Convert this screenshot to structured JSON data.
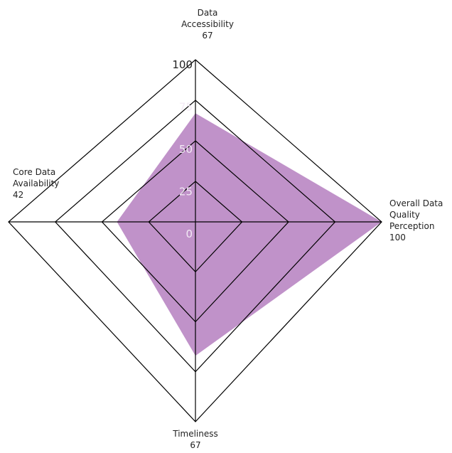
{
  "chart_data": {
    "type": "radar",
    "categories": [
      [
        "Data",
        "Accessibility"
      ],
      [
        "Overall Data",
        "Quality",
        "Perception"
      ],
      [
        "Timeliness"
      ],
      [
        "Core Data",
        "Availability"
      ]
    ],
    "values": [
      67,
      100,
      67,
      42
    ],
    "color": "#b57fbf",
    "rlim": [
      0,
      100
    ],
    "rticks": [
      0,
      25,
      50,
      75,
      100
    ]
  }
}
